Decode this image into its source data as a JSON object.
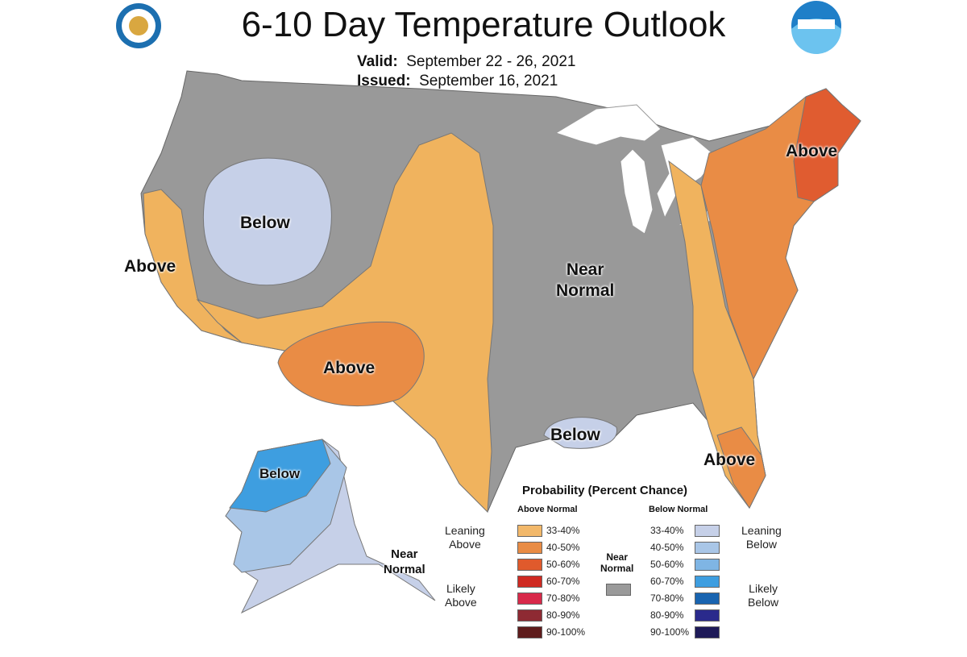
{
  "header": {
    "title": "6-10 Day Temperature Outlook",
    "valid_label": "Valid:",
    "valid_value": "September 22 - 26, 2021",
    "issued_label": "Issued:",
    "issued_value": "September 16, 2021",
    "logos": [
      "department-of-commerce-seal",
      "noaa-logo"
    ]
  },
  "map_labels": {
    "west_coast": "Above",
    "northern_rockies": "Below",
    "southwest": "Above",
    "central": "Near\nNormal",
    "gulf": "Below",
    "northeast": "Above",
    "florida": "Above",
    "alaska_below": "Below",
    "alaska_near": "Near\nNormal"
  },
  "colors": {
    "near_normal": "#999999",
    "lean_above": "#f0b35e",
    "above_40": "#e98c45",
    "above_50": "#e05c30",
    "lean_below": "#c6d0e8",
    "below_40": "#a9c6e7",
    "below_50": "#7fb5e4",
    "below_60": "#3e9ee0",
    "lakes": "#ffffff"
  },
  "legend": {
    "title": "Probability (Percent Chance)",
    "above_header": "Above Normal",
    "below_header": "Below Normal",
    "near_normal": "Near\nNormal",
    "leaning_above": "Leaning\nAbove",
    "likely_above": "Likely\nAbove",
    "leaning_below": "Leaning\nBelow",
    "likely_below": "Likely\nBelow",
    "above": [
      {
        "label": "33-40%",
        "color": "#f2b86a"
      },
      {
        "label": "40-50%",
        "color": "#e98c45"
      },
      {
        "label": "50-60%",
        "color": "#e05a2c"
      },
      {
        "label": "60-70%",
        "color": "#cf2a22"
      },
      {
        "label": "70-80%",
        "color": "#d8294a"
      },
      {
        "label": "80-90%",
        "color": "#8e2a33"
      },
      {
        "label": "90-100%",
        "color": "#5e1c1c"
      }
    ],
    "below": [
      {
        "label": "33-40%",
        "color": "#c6d0e8"
      },
      {
        "label": "40-50%",
        "color": "#a9c6e7"
      },
      {
        "label": "50-60%",
        "color": "#7fb5e4"
      },
      {
        "label": "60-70%",
        "color": "#3e9ee0"
      },
      {
        "label": "70-80%",
        "color": "#1964b0"
      },
      {
        "label": "80-90%",
        "color": "#2a2a8c"
      },
      {
        "label": "90-100%",
        "color": "#1e1a58"
      }
    ],
    "near_color": "#9a9a9a"
  }
}
